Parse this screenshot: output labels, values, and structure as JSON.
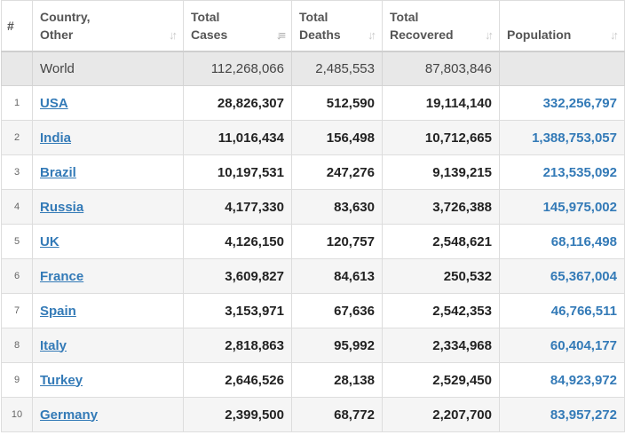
{
  "headers": {
    "num": "#",
    "country_line1": "Country,",
    "country_line2": "Other",
    "cases_line1": "Total",
    "cases_line2": "Cases",
    "deaths_line1": "Total",
    "deaths_line2": "Deaths",
    "recovered_line1": "Total",
    "recovered_line2": "Recovered",
    "population": "Population",
    "sort_icon": "sort-arrows-icon",
    "sort_active_column": "Total Cases"
  },
  "world": {
    "name": "World",
    "cases": "112,268,066",
    "deaths": "2,485,553",
    "recovered": "87,803,846",
    "population": ""
  },
  "rows": [
    {
      "rank": "1",
      "country": "USA",
      "cases": "28,826,307",
      "deaths": "512,590",
      "recovered": "19,114,140",
      "population": "332,256,797"
    },
    {
      "rank": "2",
      "country": "India",
      "cases": "11,016,434",
      "deaths": "156,498",
      "recovered": "10,712,665",
      "population": "1,388,753,057"
    },
    {
      "rank": "3",
      "country": "Brazil",
      "cases": "10,197,531",
      "deaths": "247,276",
      "recovered": "9,139,215",
      "population": "213,535,092"
    },
    {
      "rank": "4",
      "country": "Russia",
      "cases": "4,177,330",
      "deaths": "83,630",
      "recovered": "3,726,388",
      "population": "145,975,002"
    },
    {
      "rank": "5",
      "country": "UK",
      "cases": "4,126,150",
      "deaths": "120,757",
      "recovered": "2,548,621",
      "population": "68,116,498"
    },
    {
      "rank": "6",
      "country": "France",
      "cases": "3,609,827",
      "deaths": "84,613",
      "recovered": "250,532",
      "population": "65,367,004"
    },
    {
      "rank": "7",
      "country": "Spain",
      "cases": "3,153,971",
      "deaths": "67,636",
      "recovered": "2,542,353",
      "population": "46,766,511"
    },
    {
      "rank": "8",
      "country": "Italy",
      "cases": "2,818,863",
      "deaths": "95,992",
      "recovered": "2,334,968",
      "population": "60,404,177"
    },
    {
      "rank": "9",
      "country": "Turkey",
      "cases": "2,646,526",
      "deaths": "28,138",
      "recovered": "2,529,450",
      "population": "84,923,972"
    },
    {
      "rank": "10",
      "country": "Germany",
      "cases": "2,399,500",
      "deaths": "68,772",
      "recovered": "2,207,700",
      "population": "83,957,272"
    }
  ],
  "colors": {
    "link": "#337ab7",
    "world_row_bg": "#e8e8e8",
    "alt_row_bg": "#f5f5f5",
    "border": "#dddddd"
  }
}
